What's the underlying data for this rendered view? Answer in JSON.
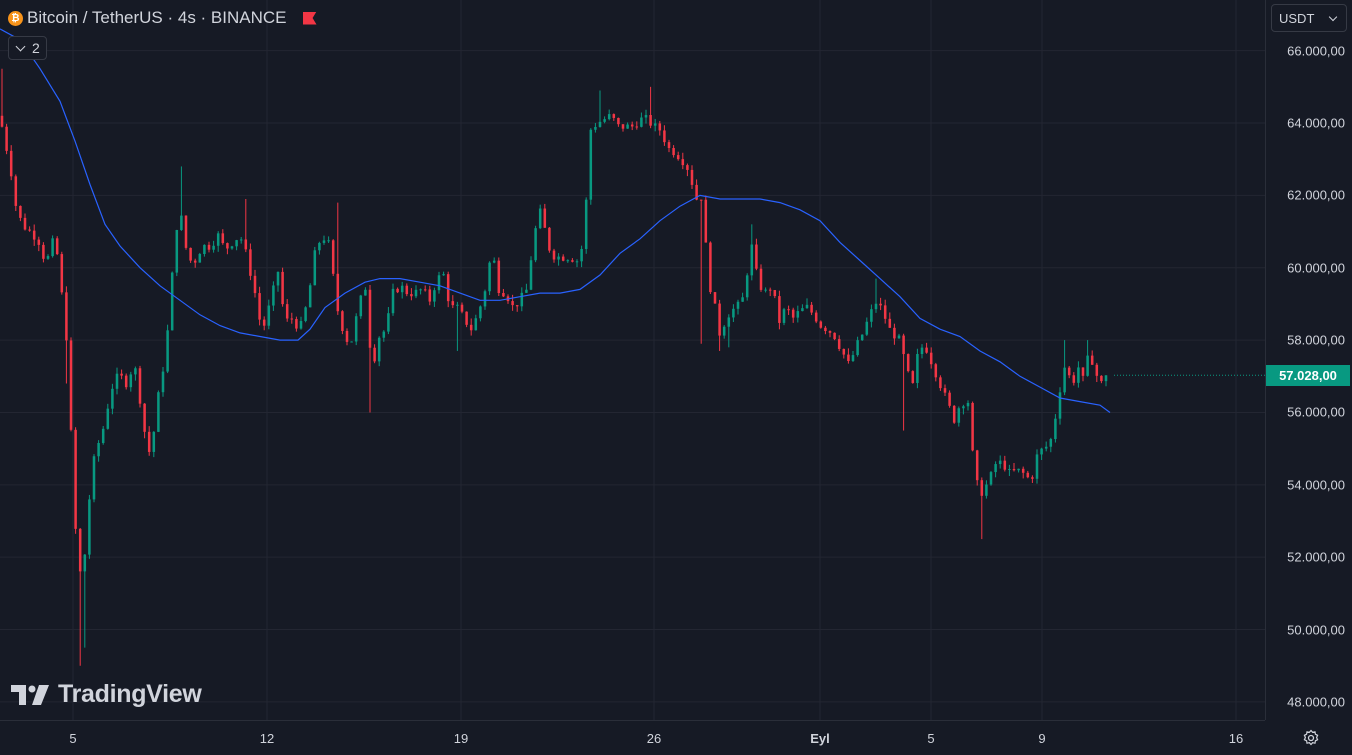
{
  "header": {
    "title": "Bitcoin / TetherUS · 4s · BINANCE",
    "coin_symbol": "₿",
    "collapse_count": "2"
  },
  "currency_selector": {
    "value": "USDT"
  },
  "last_price": {
    "label": "57.028,00",
    "value": 57028,
    "color": "#089981"
  },
  "logo": {
    "text": "TradingView"
  },
  "colors": {
    "up": "#089981",
    "down": "#f23645",
    "ma": "#2962ff",
    "background": "#161a25",
    "grid": "#232632"
  },
  "chart_data": {
    "type": "candlestick",
    "xlabel": "",
    "ylabel": "",
    "ylim": [
      47500,
      67400
    ],
    "x_range": [
      0,
      1210
    ],
    "y_ticks": [
      {
        "value": 48000,
        "label": "48.000,00"
      },
      {
        "value": 50000,
        "label": "50.000,00"
      },
      {
        "value": 52000,
        "label": "52.000,00"
      },
      {
        "value": 54000,
        "label": "54.000,00"
      },
      {
        "value": 56000,
        "label": "56.000,00"
      },
      {
        "value": 58000,
        "label": "58.000,00"
      },
      {
        "value": 60000,
        "label": "60.000,00"
      },
      {
        "value": 62000,
        "label": "62.000,00"
      },
      {
        "value": 64000,
        "label": "64.000,00"
      },
      {
        "value": 66000,
        "label": "66.000,00"
      }
    ],
    "x_ticks": [
      {
        "x": 73,
        "label": "5",
        "bold": false
      },
      {
        "x": 267,
        "label": "12",
        "bold": false
      },
      {
        "x": 461,
        "label": "19",
        "bold": false
      },
      {
        "x": 654,
        "label": "26",
        "bold": false
      },
      {
        "x": 820,
        "label": "Eyl",
        "bold": true
      },
      {
        "x": 931,
        "label": "5",
        "bold": false
      },
      {
        "x": 1042,
        "label": "9",
        "bold": false
      },
      {
        "x": 1236,
        "label": "16",
        "bold": false
      }
    ],
    "candle_width_ratio": 0.55,
    "close_anchors": [
      [
        0,
        64200
      ],
      [
        4,
        63600
      ],
      [
        10,
        62900
      ],
      [
        15,
        61800
      ],
      [
        22,
        61200
      ],
      [
        30,
        61000
      ],
      [
        38,
        60800
      ],
      [
        46,
        60100
      ],
      [
        55,
        60900
      ],
      [
        62,
        59200
      ],
      [
        68,
        57700
      ],
      [
        73,
        53900
      ],
      [
        78,
        51700
      ],
      [
        83,
        51400
      ],
      [
        88,
        53300
      ],
      [
        95,
        54900
      ],
      [
        102,
        55400
      ],
      [
        108,
        56200
      ],
      [
        114,
        56900
      ],
      [
        120,
        57000
      ],
      [
        127,
        56800
      ],
      [
        134,
        57400
      ],
      [
        141,
        56200
      ],
      [
        148,
        54800
      ],
      [
        153,
        55300
      ],
      [
        160,
        56800
      ],
      [
        165,
        57500
      ],
      [
        170,
        58900
      ],
      [
        175,
        60900
      ],
      [
        180,
        61600
      ],
      [
        188,
        60200
      ],
      [
        195,
        60200
      ],
      [
        202,
        60600
      ],
      [
        210,
        60600
      ],
      [
        218,
        60900
      ],
      [
        225,
        60500
      ],
      [
        232,
        60700
      ],
      [
        240,
        60900
      ],
      [
        247,
        60300
      ],
      [
        255,
        59300
      ],
      [
        262,
        58200
      ],
      [
        270,
        59000
      ],
      [
        278,
        59900
      ],
      [
        285,
        58500
      ],
      [
        292,
        58600
      ],
      [
        300,
        58300
      ],
      [
        308,
        59100
      ],
      [
        315,
        60400
      ],
      [
        322,
        60900
      ],
      [
        330,
        60600
      ],
      [
        336,
        59000
      ],
      [
        343,
        58300
      ],
      [
        350,
        57800
      ],
      [
        357,
        58700
      ],
      [
        365,
        59600
      ],
      [
        372,
        57200
      ],
      [
        379,
        58100
      ],
      [
        386,
        58300
      ],
      [
        393,
        59300
      ],
      [
        400,
        59500
      ],
      [
        408,
        59300
      ],
      [
        415,
        59300
      ],
      [
        422,
        59400
      ],
      [
        430,
        59100
      ],
      [
        437,
        59700
      ],
      [
        444,
        59800
      ],
      [
        450,
        58900
      ],
      [
        457,
        58900
      ],
      [
        464,
        58600
      ],
      [
        471,
        58300
      ],
      [
        478,
        58700
      ],
      [
        485,
        59400
      ],
      [
        492,
        60500
      ],
      [
        499,
        59400
      ],
      [
        506,
        59300
      ],
      [
        513,
        58900
      ],
      [
        520,
        59100
      ],
      [
        527,
        59400
      ],
      [
        534,
        60900
      ],
      [
        541,
        61600
      ],
      [
        548,
        60600
      ],
      [
        555,
        60300
      ],
      [
        562,
        60300
      ],
      [
        570,
        60300
      ],
      [
        577,
        60200
      ],
      [
        584,
        60700
      ],
      [
        590,
        63800
      ],
      [
        597,
        64000
      ],
      [
        604,
        64100
      ],
      [
        611,
        64200
      ],
      [
        618,
        63900
      ],
      [
        625,
        63900
      ],
      [
        632,
        63900
      ],
      [
        640,
        64100
      ],
      [
        647,
        64100
      ],
      [
        654,
        63900
      ],
      [
        661,
        63800
      ],
      [
        668,
        63300
      ],
      [
        675,
        63200
      ],
      [
        682,
        63000
      ],
      [
        689,
        62700
      ],
      [
        696,
        61900
      ],
      [
        703,
        62000
      ],
      [
        708,
        59500
      ],
      [
        713,
        59400
      ],
      [
        718,
        58100
      ],
      [
        723,
        58400
      ],
      [
        730,
        58800
      ],
      [
        737,
        58900
      ],
      [
        744,
        59200
      ],
      [
        751,
        60700
      ],
      [
        758,
        59600
      ],
      [
        765,
        59300
      ],
      [
        772,
        59500
      ],
      [
        779,
        58500
      ],
      [
        786,
        58900
      ],
      [
        793,
        58600
      ],
      [
        800,
        58800
      ],
      [
        807,
        58900
      ],
      [
        814,
        58700
      ],
      [
        821,
        58400
      ],
      [
        828,
        58300
      ],
      [
        835,
        58100
      ],
      [
        842,
        57700
      ],
      [
        849,
        57300
      ],
      [
        856,
        57800
      ],
      [
        863,
        58200
      ],
      [
        870,
        58700
      ],
      [
        877,
        59100
      ],
      [
        884,
        58700
      ],
      [
        891,
        58200
      ],
      [
        898,
        58100
      ],
      [
        905,
        57400
      ],
      [
        912,
        56600
      ],
      [
        919,
        57800
      ],
      [
        926,
        57800
      ],
      [
        933,
        57300
      ],
      [
        940,
        56800
      ],
      [
        947,
        56300
      ],
      [
        954,
        55800
      ],
      [
        961,
        56300
      ],
      [
        968,
        56300
      ],
      [
        975,
        54100
      ],
      [
        982,
        53800
      ],
      [
        989,
        54100
      ],
      [
        996,
        54600
      ],
      [
        1003,
        54600
      ],
      [
        1010,
        54300
      ],
      [
        1017,
        54400
      ],
      [
        1024,
        54300
      ],
      [
        1031,
        54100
      ],
      [
        1038,
        54900
      ],
      [
        1045,
        55000
      ],
      [
        1052,
        55300
      ],
      [
        1059,
        56500
      ],
      [
        1064,
        57300
      ],
      [
        1069,
        57000
      ],
      [
        1074,
        56900
      ],
      [
        1079,
        57300
      ],
      [
        1084,
        56800
      ],
      [
        1089,
        57700
      ],
      [
        1094,
        57300
      ],
      [
        1099,
        56800
      ],
      [
        1104,
        56800
      ],
      [
        1110,
        57028
      ]
    ],
    "wick_spikes": [
      [
        4,
        65500,
        0
      ],
      [
        68,
        0,
        56800
      ],
      [
        78,
        0,
        49000
      ],
      [
        83,
        0,
        49500
      ],
      [
        180,
        62800,
        0
      ],
      [
        247,
        61900,
        0
      ],
      [
        336,
        61800,
        0
      ],
      [
        372,
        0,
        56000
      ],
      [
        457,
        0,
        57700
      ],
      [
        598,
        64900,
        0
      ],
      [
        650,
        65000,
        0
      ],
      [
        703,
        0,
        57900
      ],
      [
        718,
        0,
        57700
      ],
      [
        727,
        0,
        57800
      ],
      [
        751,
        61200,
        0
      ],
      [
        877,
        59700,
        0
      ],
      [
        905,
        0,
        55500
      ],
      [
        982,
        0,
        52500
      ],
      [
        1064,
        58000,
        0
      ],
      [
        1089,
        58000,
        0
      ]
    ],
    "ma_series": [
      [
        0,
        66600
      ],
      [
        20,
        66300
      ],
      [
        40,
        65500
      ],
      [
        60,
        64600
      ],
      [
        75,
        63500
      ],
      [
        90,
        62300
      ],
      [
        105,
        61200
      ],
      [
        120,
        60600
      ],
      [
        140,
        60000
      ],
      [
        160,
        59500
      ],
      [
        180,
        59100
      ],
      [
        200,
        58700
      ],
      [
        220,
        58400
      ],
      [
        240,
        58200
      ],
      [
        260,
        58100
      ],
      [
        280,
        58000
      ],
      [
        298,
        58000
      ],
      [
        310,
        58300
      ],
      [
        325,
        58900
      ],
      [
        345,
        59300
      ],
      [
        365,
        59600
      ],
      [
        380,
        59700
      ],
      [
        400,
        59700
      ],
      [
        420,
        59600
      ],
      [
        440,
        59500
      ],
      [
        460,
        59300
      ],
      [
        480,
        59100
      ],
      [
        500,
        59100
      ],
      [
        520,
        59200
      ],
      [
        540,
        59300
      ],
      [
        560,
        59300
      ],
      [
        580,
        59400
      ],
      [
        600,
        59800
      ],
      [
        620,
        60400
      ],
      [
        640,
        60800
      ],
      [
        660,
        61300
      ],
      [
        680,
        61700
      ],
      [
        700,
        62000
      ],
      [
        720,
        61900
      ],
      [
        740,
        61900
      ],
      [
        760,
        61900
      ],
      [
        780,
        61800
      ],
      [
        800,
        61600
      ],
      [
        820,
        61300
      ],
      [
        840,
        60700
      ],
      [
        860,
        60200
      ],
      [
        880,
        59700
      ],
      [
        900,
        59200
      ],
      [
        920,
        58600
      ],
      [
        940,
        58300
      ],
      [
        960,
        58100
      ],
      [
        980,
        57700
      ],
      [
        1000,
        57400
      ],
      [
        1020,
        57000
      ],
      [
        1040,
        56700
      ],
      [
        1060,
        56400
      ],
      [
        1080,
        56300
      ],
      [
        1100,
        56200
      ],
      [
        1110,
        56000
      ]
    ]
  }
}
